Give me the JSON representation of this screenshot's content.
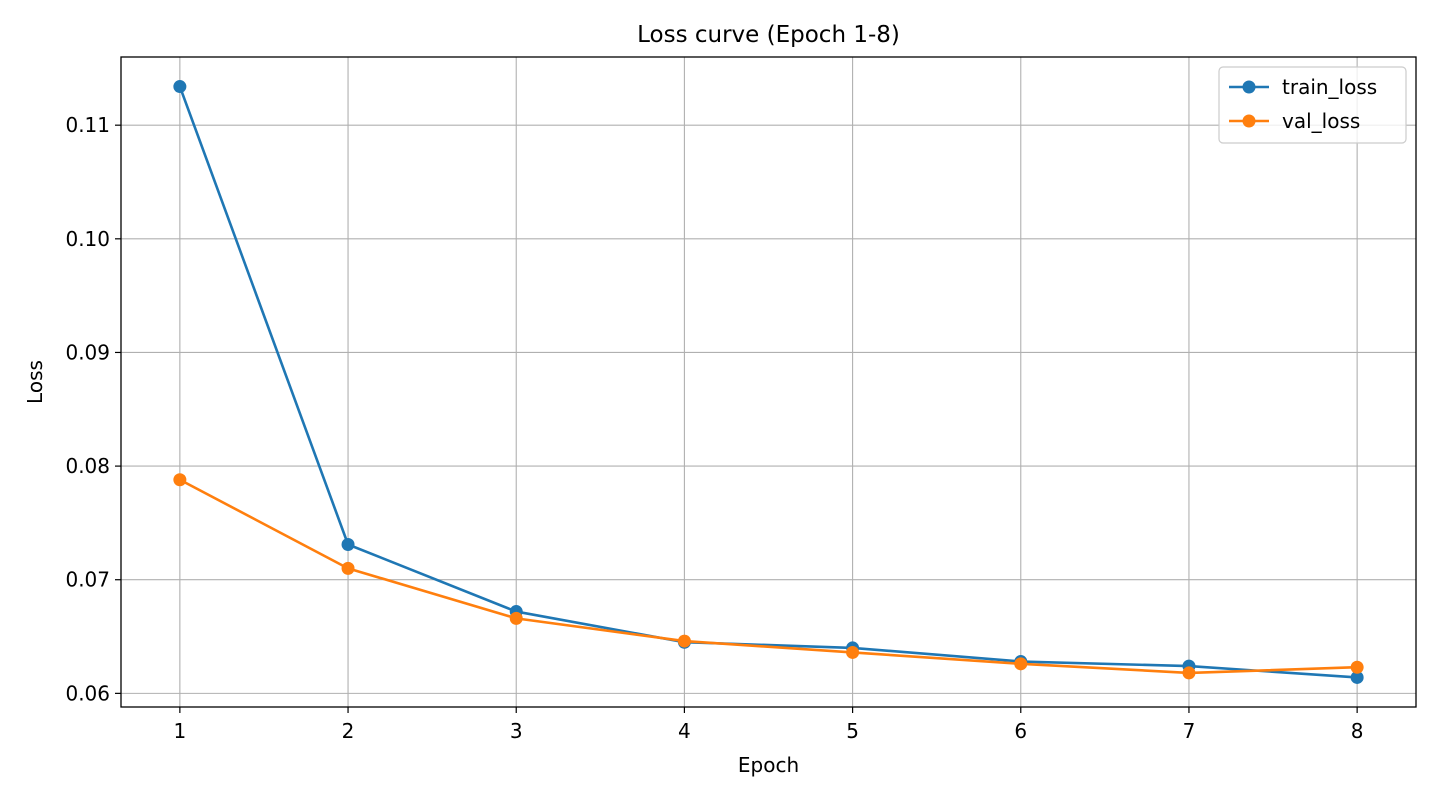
{
  "chart_data": {
    "type": "line",
    "title": "Loss curve (Epoch 1-8)",
    "xlabel": "Epoch",
    "ylabel": "Loss",
    "x": [
      1,
      2,
      3,
      4,
      5,
      6,
      7,
      8
    ],
    "xlim": [
      0.65,
      8.35
    ],
    "ylim": [
      0.0588,
      0.116
    ],
    "xticks": [
      1,
      2,
      3,
      4,
      5,
      6,
      7,
      8
    ],
    "yticks": [
      0.06,
      0.07,
      0.08,
      0.09,
      0.1,
      0.11
    ],
    "ytick_labels": [
      "0.06",
      "0.07",
      "0.08",
      "0.09",
      "0.10",
      "0.11"
    ],
    "grid": true,
    "legend_position": "top-right",
    "series": [
      {
        "name": "train_loss",
        "color": "#1f77b4",
        "marker": "circle",
        "values": [
          0.1134,
          0.0731,
          0.0672,
          0.0645,
          0.064,
          0.0628,
          0.0624,
          0.0614
        ]
      },
      {
        "name": "val_loss",
        "color": "#ff7f0e",
        "marker": "circle",
        "values": [
          0.0788,
          0.071,
          0.0666,
          0.0646,
          0.0636,
          0.0626,
          0.0618,
          0.0623
        ]
      }
    ]
  }
}
